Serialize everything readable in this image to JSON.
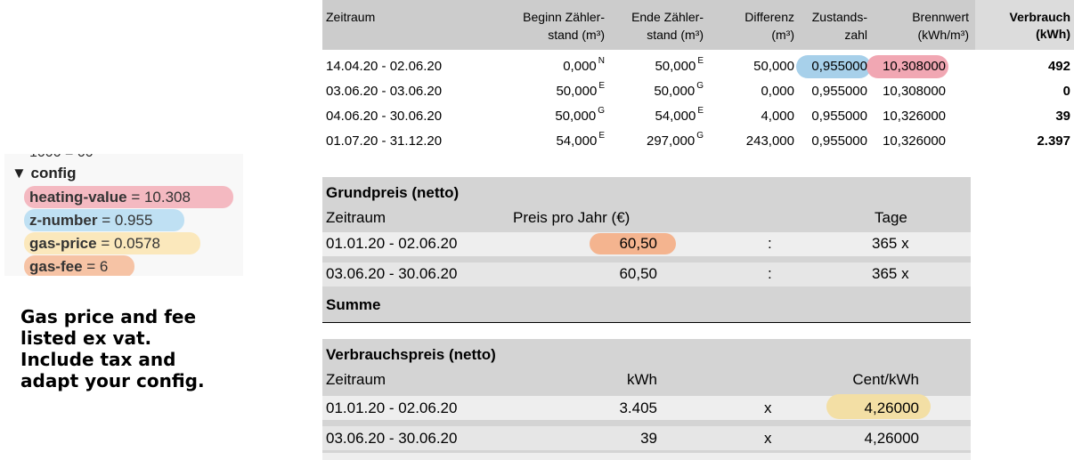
{
  "config_panel": {
    "clipped_text": "1000 = 00",
    "header": "▼ config",
    "items": [
      {
        "key": "heating-value",
        "value": "10.308"
      },
      {
        "key": "z-number",
        "value": "0.955"
      },
      {
        "key": "gas-price",
        "value": "0.0578"
      },
      {
        "key": "gas-fee",
        "value": "6"
      }
    ],
    "highlight_colors": {
      "heating-value": "#f4b9c1",
      "z-number": "#bfe0f3",
      "gas-price": "#fbe8bc",
      "gas-fee": "#f6c3a5"
    }
  },
  "note": {
    "line1": "Gas price and fee",
    "line2": "listed ex vat.",
    "line3": "Include tax and",
    "line4": "adapt your config."
  },
  "top_table": {
    "headers": {
      "zeitraum": "Zeitraum",
      "beginn_l1": "Beginn Zähler-",
      "beginn_l2": "stand (m³)",
      "ende_l1": "Ende Zähler-",
      "ende_l2": "stand (m³)",
      "diff_l1": "Differenz",
      "diff_l2": "(m³)",
      "zust_l1": "Zustands-",
      "zust_l2": "zahl",
      "brenn_l1": "Brennwert",
      "brenn_l2": "(kWh/m³)",
      "verbrauch": "Verbrauch (kWh)"
    },
    "rows": [
      {
        "zeitraum": "14.04.20 - 02.06.20",
        "beginn": "0,000",
        "beginn_flag": "N",
        "ende": "50,000",
        "ende_flag": "E",
        "differenz": "50,000",
        "zustandszahl": "0,955000",
        "brennwert": "10,308000",
        "verbrauch": "492"
      },
      {
        "zeitraum": "03.06.20 - 03.06.20",
        "beginn": "50,000",
        "beginn_flag": "E",
        "ende": "50,000",
        "ende_flag": "G",
        "differenz": "0,000",
        "zustandszahl": "0,955000",
        "brennwert": "10,308000",
        "verbrauch": "0"
      },
      {
        "zeitraum": "04.06.20 - 30.06.20",
        "beginn": "50,000",
        "beginn_flag": "G",
        "ende": "54,000",
        "ende_flag": "E",
        "differenz": "4,000",
        "zustandszahl": "0,955000",
        "brennwert": "10,326000",
        "verbrauch": "39"
      },
      {
        "zeitraum": "01.07.20 - 31.12.20",
        "beginn": "54,000",
        "beginn_flag": "E",
        "ende": "297,000",
        "ende_flag": "G",
        "differenz": "243,000",
        "zustandszahl": "0,955000",
        "brennwert": "10,326000",
        "verbrauch": "2.397"
      }
    ]
  },
  "grundpreis": {
    "title": "Grundpreis (netto)",
    "col_zeitraum": "Zeitraum",
    "col_preis": "Preis pro Jahr (€)",
    "col_tage": "Tage",
    "rows": [
      {
        "zeitraum": "01.01.20 - 02.06.20",
        "preis": "60,50",
        "op": ":",
        "tage": "365 x"
      },
      {
        "zeitraum": "03.06.20 - 30.06.20",
        "preis": "60,50",
        "op": ":",
        "tage": "365 x"
      }
    ],
    "summe": "Summe"
  },
  "verbrauchspreis": {
    "title": "Verbrauchspreis (netto)",
    "col_zeitraum": "Zeitraum",
    "col_kwh": "kWh",
    "col_cent": "Cent/kWh",
    "rows": [
      {
        "zeitraum": "01.01.20 - 02.06.20",
        "kwh": "3.405",
        "op": "x",
        "cent": "4,26000"
      },
      {
        "zeitraum": "03.06.20 - 30.06.20",
        "kwh": "39",
        "op": "x",
        "cent": "4,26000"
      }
    ]
  }
}
